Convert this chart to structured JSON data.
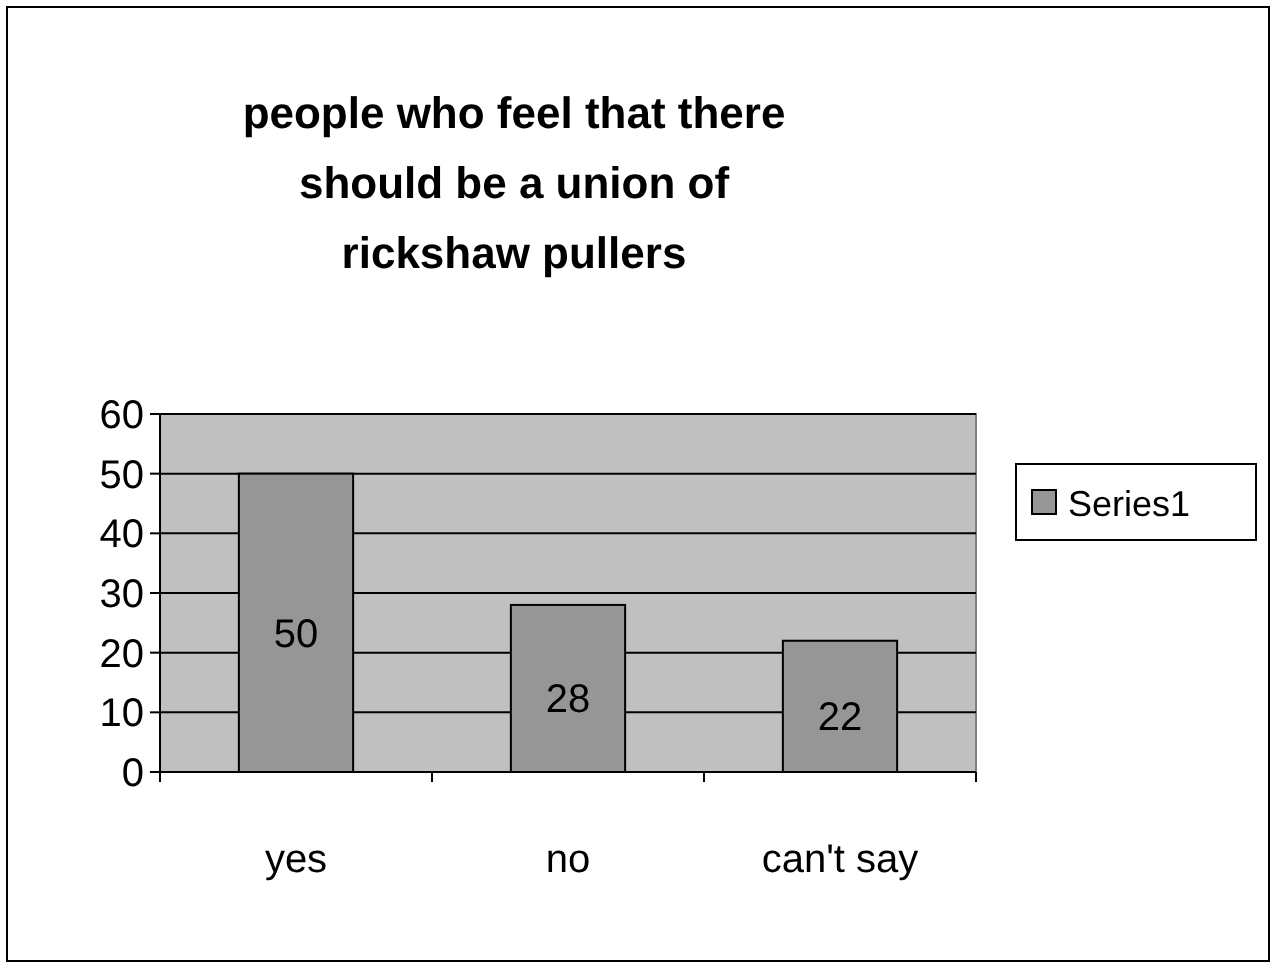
{
  "chart_data": {
    "type": "bar",
    "title": "people who feel that there should be a union of rickshaw pullers",
    "categories": [
      "yes",
      "no",
      "can't say"
    ],
    "series": [
      {
        "name": "Series1",
        "color": "#969696",
        "values": [
          50,
          28,
          22
        ]
      }
    ],
    "ylim": [
      0,
      60
    ],
    "yticks": [
      0,
      10,
      20,
      30,
      40,
      50,
      60
    ],
    "grid": "y",
    "legend": "right",
    "data_labels": true
  }
}
